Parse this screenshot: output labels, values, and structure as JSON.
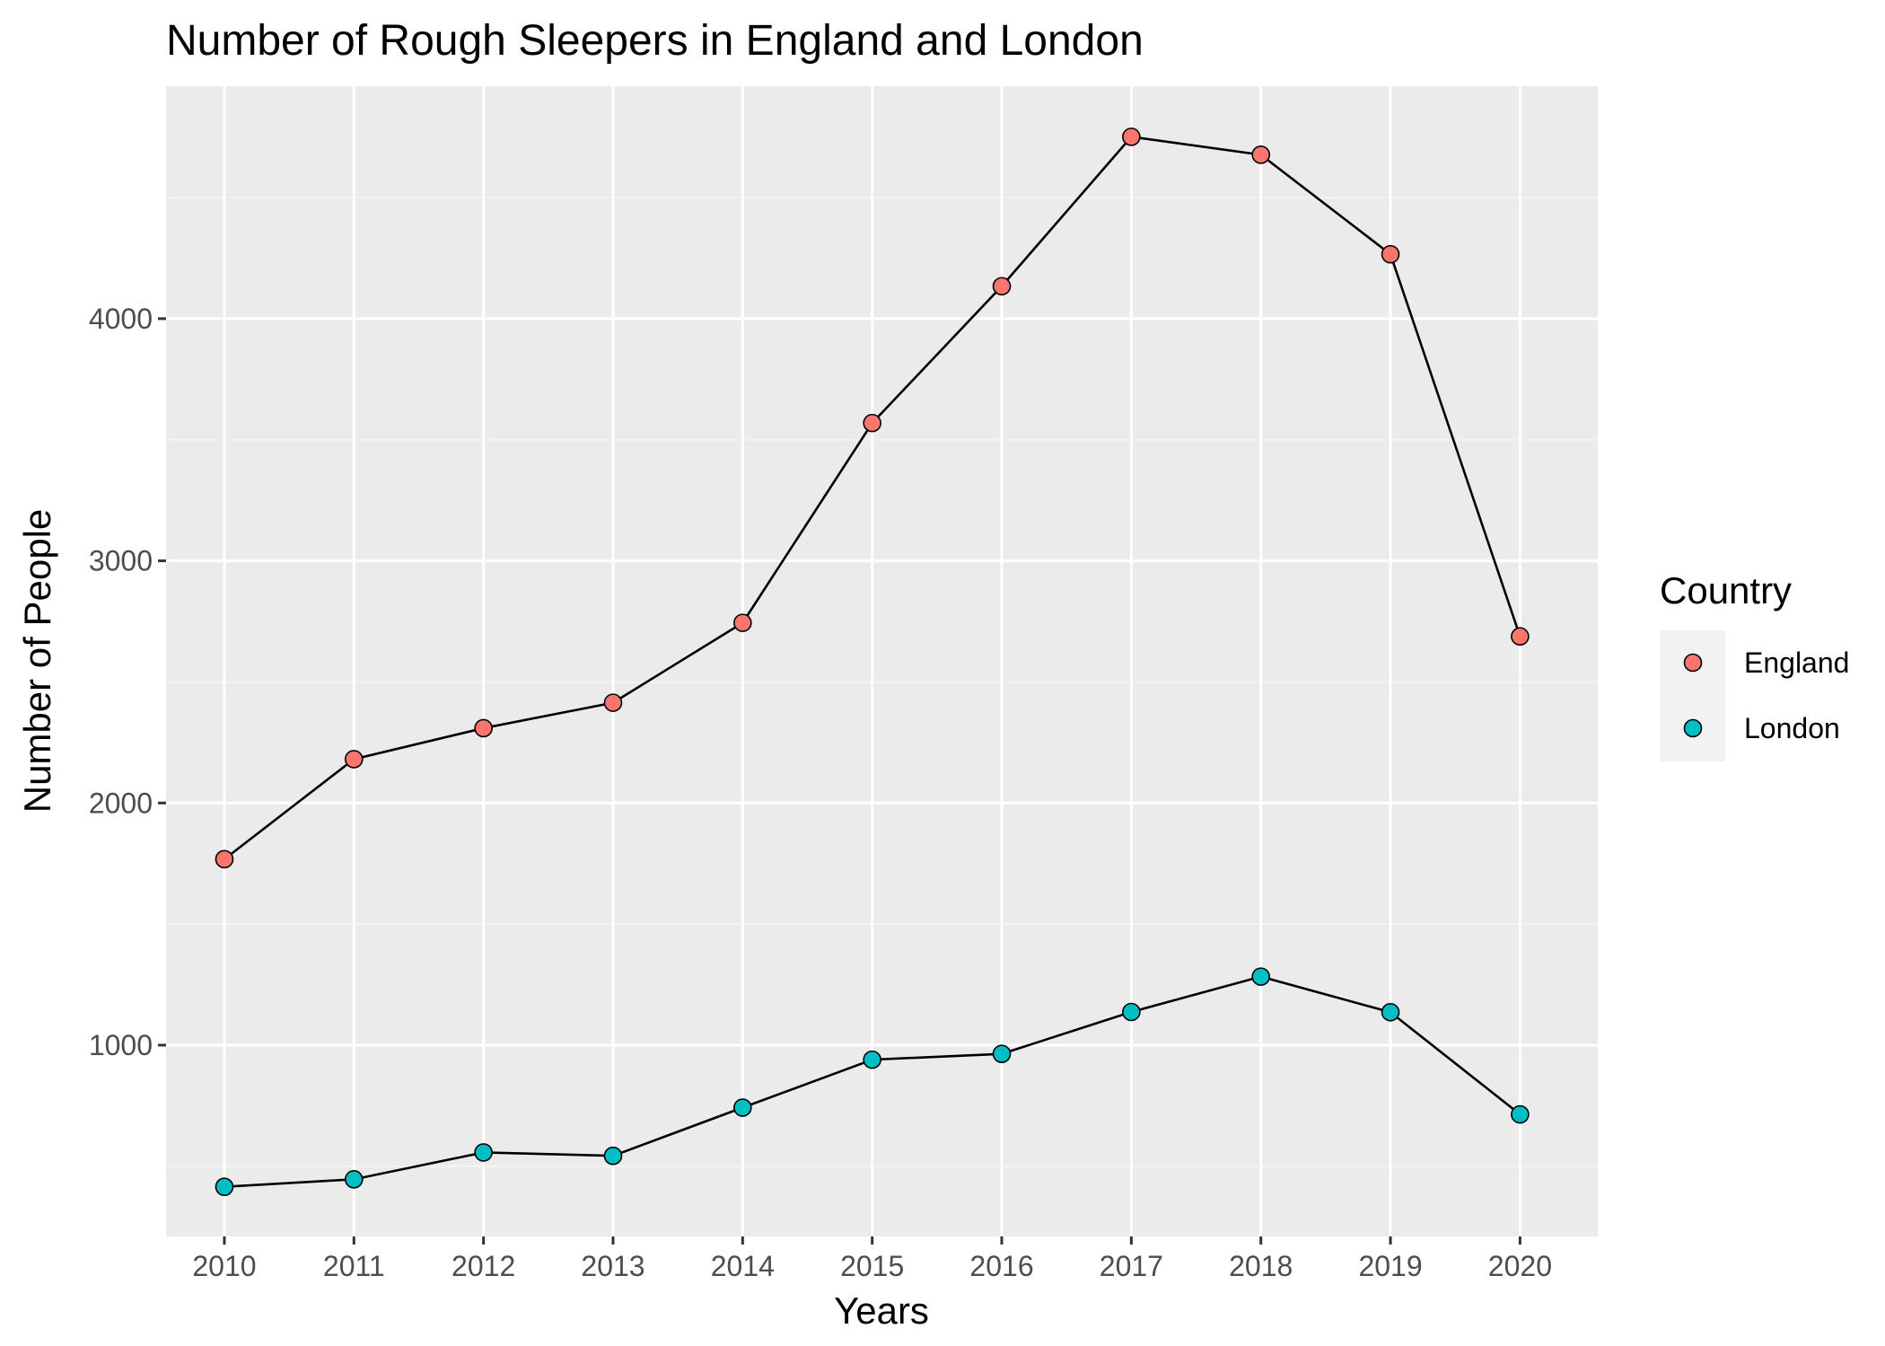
{
  "chart_data": {
    "type": "line",
    "title": "Number of Rough Sleepers in England and London",
    "xlabel": "Years",
    "ylabel": "Number of People",
    "x": [
      2010,
      2011,
      2012,
      2013,
      2014,
      2015,
      2016,
      2017,
      2018,
      2019,
      2020
    ],
    "x_tick_labels": [
      "2010",
      "2011",
      "2012",
      "2013",
      "2014",
      "2015",
      "2016",
      "2017",
      "2018",
      "2019",
      "2020"
    ],
    "y_ticks": [
      1000,
      2000,
      3000,
      4000
    ],
    "y_tick_labels": [
      "1000",
      "2000",
      "3000",
      "4000"
    ],
    "xlim": [
      2009.55,
      2020.6
    ],
    "ylim": [
      210,
      4960
    ],
    "grid": true,
    "legend": {
      "title": "Country",
      "position": "right"
    },
    "series": [
      {
        "name": "England",
        "color": "#F8766D",
        "values": [
          1768,
          2181,
          2309,
          2414,
          2744,
          3569,
          4134,
          4751,
          4677,
          4266,
          2688
        ]
      },
      {
        "name": "London",
        "color": "#00BFC4",
        "values": [
          415,
          446,
          557,
          543,
          742,
          940,
          964,
          1137,
          1283,
          1136,
          714
        ]
      }
    ],
    "colors": {
      "panel_background": "#EBEBEB",
      "grid_major": "#FFFFFF",
      "grid_minor": "#F5F5F5",
      "line": "#000000",
      "point_outline": "#000000",
      "tick_text": "#4D4D4D"
    }
  }
}
